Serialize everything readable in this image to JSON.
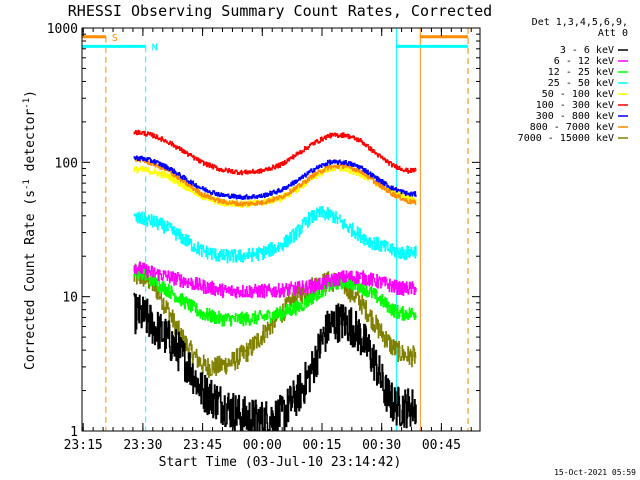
{
  "chart_data": {
    "type": "line",
    "title": "RHESSI Observing Summary Count Rates, Corrected",
    "xlabel": "Start Time (03-Jul-10 23:14:42)",
    "ylabel_parts": [
      "Corrected Count Rate (s",
      "-1",
      " detector",
      "-1",
      ")"
    ],
    "yscale": "log",
    "ylim": [
      1,
      1000
    ],
    "xlim_minutes": [
      0,
      100
    ],
    "x_ticks": [
      {
        "label": "23:15",
        "min": 0.3
      },
      {
        "label": "23:30",
        "min": 15.3
      },
      {
        "label": "23:45",
        "min": 30.3
      },
      {
        "label": "00:00",
        "min": 45.3
      },
      {
        "label": "00:15",
        "min": 60.3
      },
      {
        "label": "00:30",
        "min": 75.3
      },
      {
        "label": "00:45",
        "min": 90.3
      }
    ],
    "y_ticks": [
      {
        "label": "1",
        "value": 1
      },
      {
        "label": "10",
        "value": 10
      },
      {
        "label": "100",
        "value": 100
      },
      {
        "label": "1000",
        "value": 1000
      }
    ],
    "legend_header": [
      "Det 1,3,4,5,6,9,",
      "Att 0"
    ],
    "legend_position": "top-right outside",
    "series": [
      {
        "name": "3 - 6 keV",
        "color": "#000000",
        "x": [
          13,
          14,
          16,
          18,
          21,
          24,
          27,
          30,
          35,
          40,
          45,
          50,
          55,
          58,
          60,
          62,
          64,
          66,
          68,
          70,
          72,
          74,
          76,
          78,
          80,
          82,
          84
        ],
        "y": [
          7.5,
          7.5,
          7,
          6,
          5,
          4,
          3,
          2,
          1.6,
          1.3,
          1.2,
          1.3,
          2,
          3,
          4.5,
          6,
          6.5,
          6.5,
          6,
          5,
          4,
          3,
          2,
          1.6,
          1.5,
          1.5,
          1.5
        ]
      },
      {
        "name": "6 - 12 keV",
        "color": "#ff00ff",
        "x": [
          13,
          15,
          18,
          22,
          26,
          30,
          36,
          42,
          48,
          54,
          58,
          62,
          66,
          70,
          74,
          78,
          80,
          82,
          84
        ],
        "y": [
          17,
          16,
          15,
          14,
          13,
          12,
          11,
          11,
          11,
          11.5,
          12,
          13,
          14,
          14,
          13,
          12,
          11.5,
          11.5,
          11.5
        ]
      },
      {
        "name": "12 - 25 keV",
        "color": "#00ff00",
        "x": [
          13,
          15,
          18,
          22,
          26,
          30,
          35,
          40,
          45,
          50,
          55,
          58,
          62,
          66,
          70,
          74,
          78,
          80,
          82,
          84
        ],
        "y": [
          16,
          15,
          13,
          11,
          9,
          7.5,
          6.8,
          6.8,
          7,
          7.5,
          8.5,
          10,
          12,
          13,
          12,
          10,
          8,
          7.5,
          7.5,
          7.5
        ]
      },
      {
        "name": "25 - 50 keV",
        "color": "#00ffff",
        "x": [
          13,
          15,
          18,
          21,
          24,
          27,
          30,
          35,
          40,
          45,
          50,
          54,
          57,
          60,
          63,
          66,
          69,
          72,
          75,
          78,
          81,
          84
        ],
        "y": [
          38,
          38,
          36,
          33,
          29,
          25,
          22,
          20,
          20,
          21,
          24,
          30,
          38,
          42,
          40,
          34,
          30,
          26,
          24,
          22,
          21,
          22
        ]
      },
      {
        "name": "50 - 100 keV",
        "color": "#ffff00",
        "x": [
          13,
          15,
          18,
          22,
          26,
          30,
          35,
          40,
          45,
          50,
          55,
          58,
          62,
          66,
          70,
          74,
          78,
          82,
          84
        ],
        "y": [
          88,
          88,
          85,
          78,
          66,
          56,
          50,
          49,
          50,
          54,
          66,
          78,
          90,
          90,
          82,
          70,
          60,
          54,
          52
        ]
      },
      {
        "name": "100 - 300 keV",
        "color": "#ff0000",
        "x": [
          13,
          15,
          18,
          22,
          26,
          30,
          35,
          40,
          45,
          50,
          54,
          58,
          62,
          66,
          70,
          74,
          78,
          82,
          84
        ],
        "y": [
          168,
          166,
          158,
          140,
          118,
          100,
          88,
          84,
          86,
          96,
          115,
          138,
          158,
          160,
          145,
          115,
          95,
          86,
          88
        ]
      },
      {
        "name": "300 - 800 keV",
        "color": "#0000ff",
        "x": [
          13,
          15,
          18,
          22,
          26,
          30,
          35,
          40,
          45,
          50,
          55,
          58,
          62,
          66,
          70,
          74,
          78,
          82,
          84
        ],
        "y": [
          108,
          107,
          102,
          90,
          75,
          64,
          57,
          55,
          56,
          62,
          76,
          88,
          100,
          100,
          92,
          76,
          64,
          58,
          58
        ]
      },
      {
        "name": "800 - 7000 keV",
        "color": "#ff8c00",
        "x": [
          13,
          15,
          18,
          22,
          26,
          30,
          35,
          40,
          45,
          50,
          55,
          58,
          62,
          66,
          70,
          74,
          78,
          82,
          84
        ],
        "y": [
          106,
          104,
          97,
          85,
          70,
          58,
          51,
          49,
          50,
          55,
          68,
          80,
          92,
          94,
          86,
          70,
          58,
          51,
          50
        ]
      },
      {
        "name": "7000 - 15000 keV",
        "color": "#808000",
        "x": [
          13,
          15,
          17,
          19,
          21,
          23,
          25,
          27,
          29,
          31,
          34,
          38,
          42,
          46,
          50,
          54,
          58,
          62,
          64,
          66,
          68,
          70,
          72,
          74,
          76,
          78,
          80,
          82,
          84
        ],
        "y": [
          14,
          14,
          13,
          11,
          8.5,
          6.5,
          5,
          4,
          3.4,
          3,
          3,
          3.3,
          4,
          5.5,
          7.5,
          10,
          12,
          13,
          13,
          12,
          10.5,
          9,
          7.5,
          6,
          5,
          4.2,
          3.8,
          3.6,
          3.6
        ]
      }
    ],
    "annotations": [
      {
        "label": "S",
        "color": "#ff8c00",
        "bar_x": [
          0,
          6
        ],
        "y": 860,
        "dash_x": 6
      },
      {
        "label": "N",
        "color": "#00ffff",
        "bar_x": [
          0,
          16
        ],
        "y": 730,
        "dash_x": 16
      }
    ],
    "vertical_markers": [
      {
        "x": 0,
        "color": "#00ffff",
        "style": "solid"
      },
      {
        "x": 79,
        "color": "#00ffff",
        "style": "solid"
      },
      {
        "x": 85,
        "color": "#ff8c00",
        "style": "solid"
      },
      {
        "x": 97,
        "color": "#00ffff",
        "style": "dashed"
      },
      {
        "x": 97,
        "color": "#ff8c00",
        "style": "dashed"
      }
    ],
    "top_right_bars": [
      {
        "color": "#ff8c00",
        "x": [
          85,
          97
        ],
        "y": 860
      },
      {
        "color": "#00ffff",
        "x": [
          79,
          97
        ],
        "y": 730
      }
    ],
    "footer_date": "15-Oct-2021 05:59"
  }
}
